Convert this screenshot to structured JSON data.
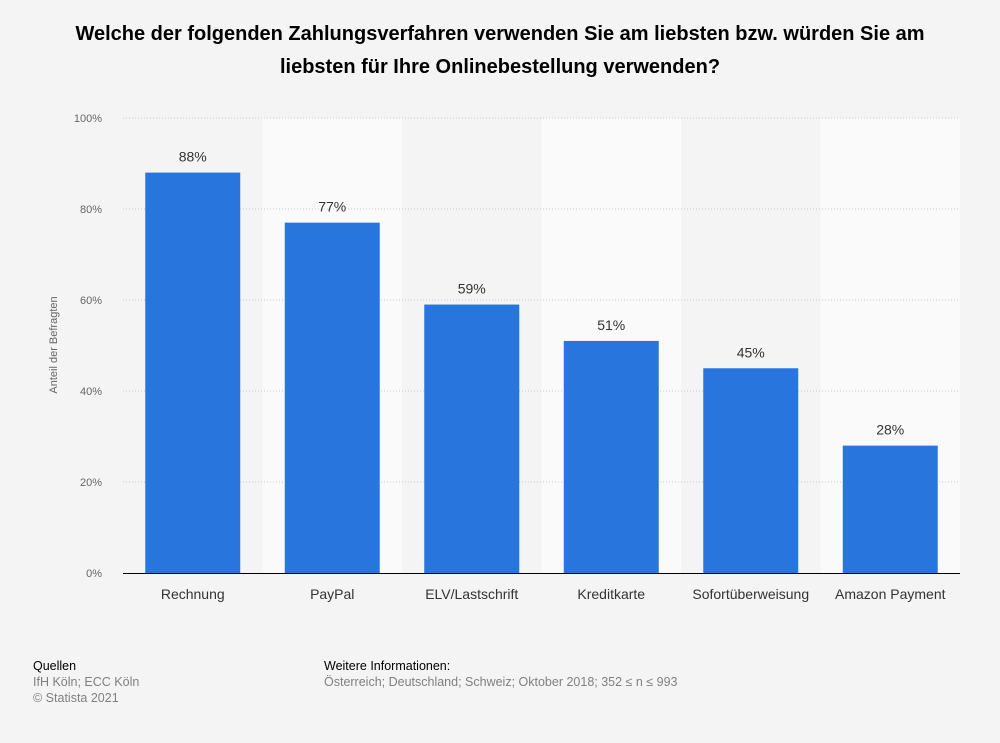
{
  "chart_data": {
    "type": "bar",
    "title": "Welche der folgenden Zahlungsverfahren verwenden Sie am liebsten bzw. würden Sie am liebsten für Ihre Onlinebestellung verwenden?",
    "xlabel": "",
    "ylabel": "Anteil der Befragten",
    "ylim": [
      0,
      100
    ],
    "yticks": [
      "0%",
      "20%",
      "40%",
      "60%",
      "80%",
      "100%"
    ],
    "grid": true,
    "categories": [
      "Rechnung",
      "PayPal",
      "ELV/Lastschrift",
      "Kreditkarte",
      "Sofortüberweisung",
      "Amazon Payment"
    ],
    "values": [
      88,
      77,
      59,
      51,
      45,
      28
    ],
    "data_labels": [
      "88%",
      "77%",
      "59%",
      "51%",
      "45%",
      "28%"
    ],
    "bar_color": "#2876dd"
  },
  "footer": {
    "sources_heading": "Quellen",
    "sources": "IfH Köln; ECC Köln",
    "copyright": "© Statista 2021",
    "info_heading": "Weitere Informationen:",
    "info": "Österreich; Deutschland; Schweiz; Oktober 2018; 352 ≤ n ≤ 993"
  }
}
